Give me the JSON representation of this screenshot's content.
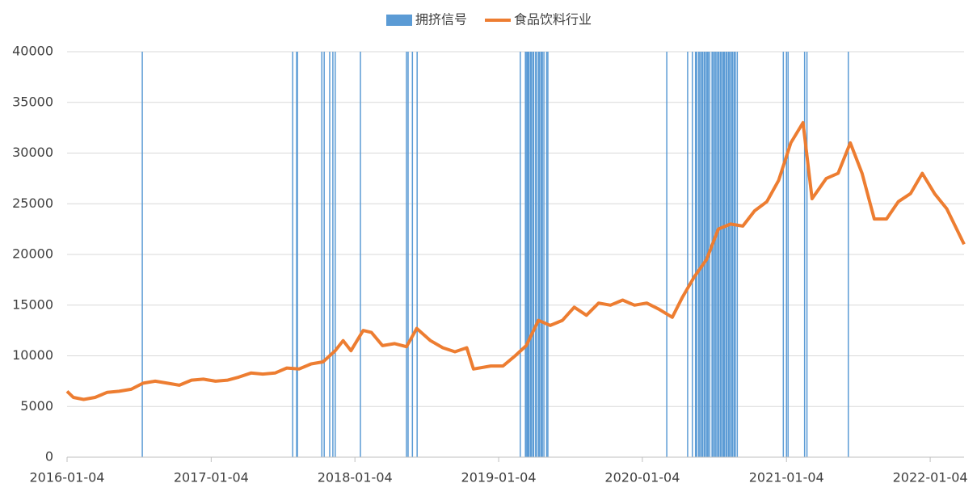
{
  "chart_data": {
    "type": "line",
    "xlim": [
      "2016-01-04",
      "2022-03-31"
    ],
    "xticks": [
      "2016-01-04",
      "2017-01-04",
      "2018-01-04",
      "2019-01-04",
      "2020-01-04",
      "2021-01-04",
      "2022-01-04"
    ],
    "ylim": [
      0,
      40000
    ],
    "yticks": [
      0,
      5000,
      10000,
      15000,
      20000,
      25000,
      30000,
      35000,
      40000
    ],
    "grid": true,
    "legend": "top",
    "series": [
      {
        "name": "拥挤信号",
        "type": "bar",
        "color": "#5b9bd5",
        "x": [
          "2016-07-13",
          "2017-07-30",
          "2017-08-09",
          "2017-08-11",
          "2017-10-12",
          "2017-10-18",
          "2017-11-01",
          "2017-11-09",
          "2017-11-15",
          "2018-01-18",
          "2018-05-15",
          "2018-05-19",
          "2018-05-30",
          "2018-06-11",
          "2019-02-28",
          "2019-03-13",
          "2019-03-15",
          "2019-03-18",
          "2019-03-20",
          "2019-03-22",
          "2019-03-26",
          "2019-03-28",
          "2019-04-01",
          "2019-04-03",
          "2019-04-08",
          "2019-04-10",
          "2019-04-15",
          "2019-04-18",
          "2019-04-22",
          "2019-04-25",
          "2019-04-29",
          "2019-05-06",
          "2019-05-09",
          "2020-03-06",
          "2020-04-28",
          "2020-05-10",
          "2020-05-18",
          "2020-05-21",
          "2020-05-26",
          "2020-05-29",
          "2020-06-02",
          "2020-06-05",
          "2020-06-09",
          "2020-06-12",
          "2020-06-16",
          "2020-06-19",
          "2020-06-23",
          "2020-06-29",
          "2020-07-02",
          "2020-07-06",
          "2020-07-09",
          "2020-07-13",
          "2020-07-16",
          "2020-07-20",
          "2020-07-23",
          "2020-07-27",
          "2020-07-30",
          "2020-08-03",
          "2020-08-06",
          "2020-08-10",
          "2020-08-13",
          "2020-08-17",
          "2020-08-20",
          "2020-08-24",
          "2020-08-27",
          "2020-09-01",
          "2020-12-27",
          "2021-01-04",
          "2021-01-08",
          "2021-02-19",
          "2021-02-25",
          "2021-06-10"
        ],
        "values": [
          40000,
          40000,
          40000,
          40000,
          40000,
          40000,
          40000,
          40000,
          40000,
          40000,
          40000,
          40000,
          40000,
          40000,
          40000,
          40000,
          40000,
          40000,
          40000,
          40000,
          40000,
          40000,
          40000,
          40000,
          40000,
          40000,
          40000,
          40000,
          40000,
          40000,
          40000,
          40000,
          40000,
          40000,
          40000,
          40000,
          40000,
          40000,
          40000,
          40000,
          40000,
          40000,
          40000,
          40000,
          40000,
          40000,
          40000,
          40000,
          40000,
          40000,
          40000,
          40000,
          40000,
          40000,
          40000,
          40000,
          40000,
          40000,
          40000,
          40000,
          40000,
          40000,
          40000,
          40000,
          40000,
          40000,
          40000,
          40000,
          40000,
          40000,
          40000,
          40000
        ]
      },
      {
        "name": "食品饮料行业",
        "type": "line",
        "color": "#ed7d31",
        "x": [
          "2016-01-04",
          "2016-01-20",
          "2016-02-15",
          "2016-03-15",
          "2016-04-15",
          "2016-05-15",
          "2016-06-15",
          "2016-07-15",
          "2016-08-15",
          "2016-09-15",
          "2016-10-15",
          "2016-11-15",
          "2016-12-15",
          "2017-01-15",
          "2017-02-15",
          "2017-03-15",
          "2017-04-15",
          "2017-05-15",
          "2017-06-15",
          "2017-07-15",
          "2017-08-15",
          "2017-09-15",
          "2017-10-15",
          "2017-11-15",
          "2017-12-05",
          "2017-12-25",
          "2018-01-25",
          "2018-02-15",
          "2018-03-15",
          "2018-04-15",
          "2018-05-15",
          "2018-06-10",
          "2018-07-15",
          "2018-08-15",
          "2018-09-15",
          "2018-10-15",
          "2018-11-01",
          "2018-12-15",
          "2019-01-15",
          "2019-02-15",
          "2019-03-15",
          "2019-04-15",
          "2019-05-15",
          "2019-06-15",
          "2019-07-15",
          "2019-08-15",
          "2019-09-15",
          "2019-10-15",
          "2019-11-15",
          "2019-12-15",
          "2020-01-15",
          "2020-02-15",
          "2020-03-20",
          "2020-04-15",
          "2020-05-15",
          "2020-06-15",
          "2020-07-15",
          "2020-08-15",
          "2020-09-15",
          "2020-10-15",
          "2020-11-15",
          "2020-12-15",
          "2021-01-15",
          "2021-02-15",
          "2021-03-10",
          "2021-04-15",
          "2021-05-15",
          "2021-06-15",
          "2021-07-15",
          "2021-08-15",
          "2021-09-15",
          "2021-10-15",
          "2021-11-15",
          "2021-12-15",
          "2022-01-15",
          "2022-02-15",
          "2022-03-31"
        ],
        "values": [
          6500,
          5900,
          5700,
          5900,
          6400,
          6500,
          6700,
          7300,
          7500,
          7300,
          7100,
          7600,
          7700,
          7500,
          7600,
          7900,
          8300,
          8200,
          8300,
          8800,
          8700,
          9200,
          9400,
          10500,
          11500,
          10500,
          12500,
          12300,
          11000,
          11200,
          10900,
          12700,
          11500,
          10800,
          10400,
          10800,
          8700,
          9000,
          9000,
          10000,
          11000,
          13500,
          13000,
          13500,
          14800,
          14000,
          15200,
          15000,
          15500,
          15000,
          15200,
          14600,
          13800,
          15800,
          17800,
          19500,
          22500,
          23000,
          22800,
          24300,
          25200,
          27300,
          31000,
          33000,
          25500,
          27500,
          28000,
          31000,
          28000,
          23500,
          23500,
          25200,
          26000,
          28000,
          26000,
          24500,
          21000
        ]
      }
    ]
  }
}
